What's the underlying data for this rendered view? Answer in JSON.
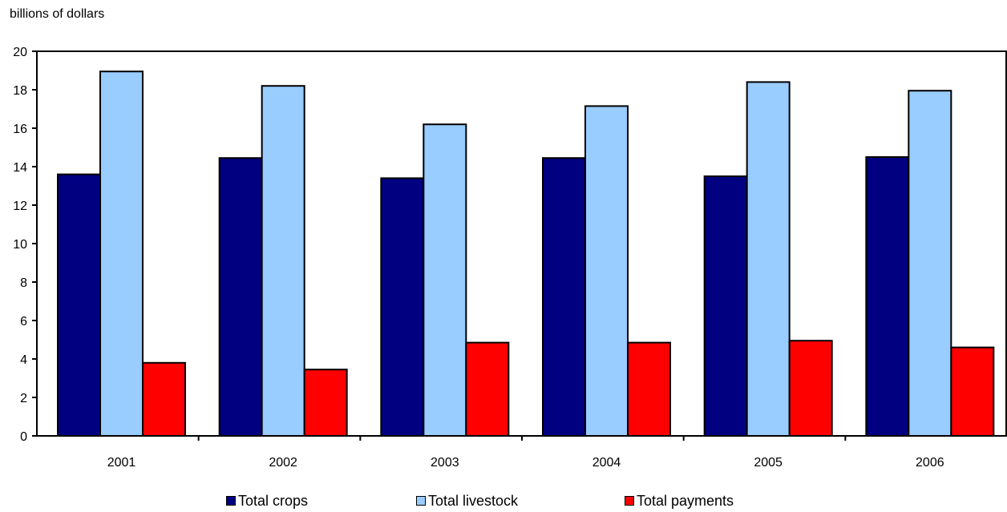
{
  "chart_data": {
    "type": "bar",
    "ylabel": "billions of dollars",
    "xlabel": "",
    "ylim": [
      0,
      20
    ],
    "yticks": [
      0,
      2,
      4,
      6,
      8,
      10,
      12,
      14,
      16,
      18,
      20
    ],
    "grid": false,
    "legend_position": "bottom",
    "categories": [
      "2001",
      "2002",
      "2003",
      "2004",
      "2005",
      "2006"
    ],
    "series": [
      {
        "name": "Total crops",
        "color": "#000080",
        "values": [
          13.6,
          14.45,
          13.4,
          14.45,
          13.5,
          14.5
        ]
      },
      {
        "name": "Total livestock",
        "color": "#99ccff",
        "values": [
          18.95,
          18.2,
          16.2,
          17.15,
          18.4,
          17.95
        ]
      },
      {
        "name": "Total payments",
        "color": "#ff0000",
        "values": [
          3.8,
          3.45,
          4.85,
          4.85,
          4.95,
          4.6
        ]
      }
    ]
  }
}
